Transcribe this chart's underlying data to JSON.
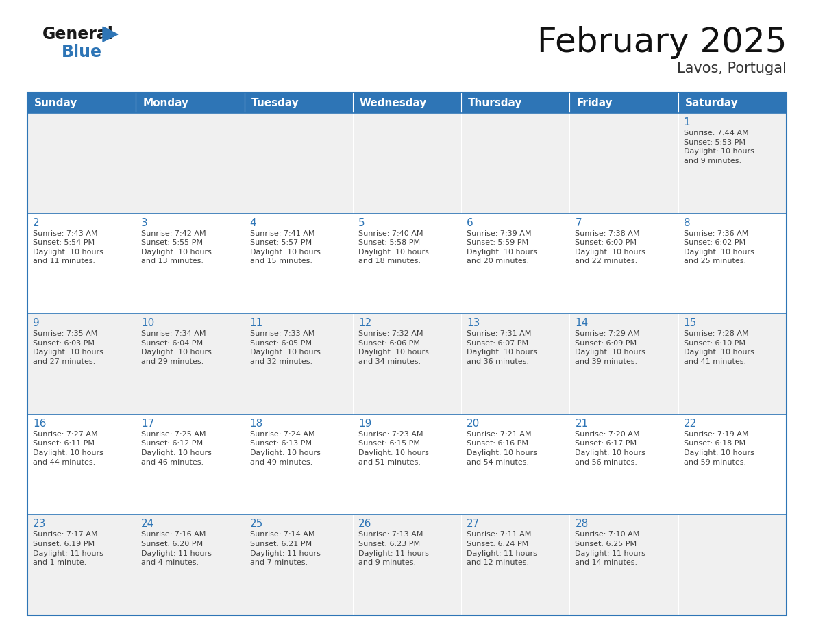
{
  "title": "February 2025",
  "subtitle": "Lavos, Portugal",
  "days_of_week": [
    "Sunday",
    "Monday",
    "Tuesday",
    "Wednesday",
    "Thursday",
    "Friday",
    "Saturday"
  ],
  "header_bg": "#2E75B6",
  "header_text": "#FFFFFF",
  "cell_bg_odd": "#F0F0F0",
  "cell_bg_even": "#FFFFFF",
  "border_color": "#2E75B6",
  "day_number_color": "#2E75B6",
  "text_color": "#404040",
  "calendar_data": [
    [
      null,
      null,
      null,
      null,
      null,
      null,
      {
        "day": 1,
        "sunrise": "7:44 AM",
        "sunset": "5:53 PM",
        "daylight": "10 hours\nand 9 minutes."
      }
    ],
    [
      {
        "day": 2,
        "sunrise": "7:43 AM",
        "sunset": "5:54 PM",
        "daylight": "10 hours\nand 11 minutes."
      },
      {
        "day": 3,
        "sunrise": "7:42 AM",
        "sunset": "5:55 PM",
        "daylight": "10 hours\nand 13 minutes."
      },
      {
        "day": 4,
        "sunrise": "7:41 AM",
        "sunset": "5:57 PM",
        "daylight": "10 hours\nand 15 minutes."
      },
      {
        "day": 5,
        "sunrise": "7:40 AM",
        "sunset": "5:58 PM",
        "daylight": "10 hours\nand 18 minutes."
      },
      {
        "day": 6,
        "sunrise": "7:39 AM",
        "sunset": "5:59 PM",
        "daylight": "10 hours\nand 20 minutes."
      },
      {
        "day": 7,
        "sunrise": "7:38 AM",
        "sunset": "6:00 PM",
        "daylight": "10 hours\nand 22 minutes."
      },
      {
        "day": 8,
        "sunrise": "7:36 AM",
        "sunset": "6:02 PM",
        "daylight": "10 hours\nand 25 minutes."
      }
    ],
    [
      {
        "day": 9,
        "sunrise": "7:35 AM",
        "sunset": "6:03 PM",
        "daylight": "10 hours\nand 27 minutes."
      },
      {
        "day": 10,
        "sunrise": "7:34 AM",
        "sunset": "6:04 PM",
        "daylight": "10 hours\nand 29 minutes."
      },
      {
        "day": 11,
        "sunrise": "7:33 AM",
        "sunset": "6:05 PM",
        "daylight": "10 hours\nand 32 minutes."
      },
      {
        "day": 12,
        "sunrise": "7:32 AM",
        "sunset": "6:06 PM",
        "daylight": "10 hours\nand 34 minutes."
      },
      {
        "day": 13,
        "sunrise": "7:31 AM",
        "sunset": "6:07 PM",
        "daylight": "10 hours\nand 36 minutes."
      },
      {
        "day": 14,
        "sunrise": "7:29 AM",
        "sunset": "6:09 PM",
        "daylight": "10 hours\nand 39 minutes."
      },
      {
        "day": 15,
        "sunrise": "7:28 AM",
        "sunset": "6:10 PM",
        "daylight": "10 hours\nand 41 minutes."
      }
    ],
    [
      {
        "day": 16,
        "sunrise": "7:27 AM",
        "sunset": "6:11 PM",
        "daylight": "10 hours\nand 44 minutes."
      },
      {
        "day": 17,
        "sunrise": "7:25 AM",
        "sunset": "6:12 PM",
        "daylight": "10 hours\nand 46 minutes."
      },
      {
        "day": 18,
        "sunrise": "7:24 AM",
        "sunset": "6:13 PM",
        "daylight": "10 hours\nand 49 minutes."
      },
      {
        "day": 19,
        "sunrise": "7:23 AM",
        "sunset": "6:15 PM",
        "daylight": "10 hours\nand 51 minutes."
      },
      {
        "day": 20,
        "sunrise": "7:21 AM",
        "sunset": "6:16 PM",
        "daylight": "10 hours\nand 54 minutes."
      },
      {
        "day": 21,
        "sunrise": "7:20 AM",
        "sunset": "6:17 PM",
        "daylight": "10 hours\nand 56 minutes."
      },
      {
        "day": 22,
        "sunrise": "7:19 AM",
        "sunset": "6:18 PM",
        "daylight": "10 hours\nand 59 minutes."
      }
    ],
    [
      {
        "day": 23,
        "sunrise": "7:17 AM",
        "sunset": "6:19 PM",
        "daylight": "11 hours\nand 1 minute."
      },
      {
        "day": 24,
        "sunrise": "7:16 AM",
        "sunset": "6:20 PM",
        "daylight": "11 hours\nand 4 minutes."
      },
      {
        "day": 25,
        "sunrise": "7:14 AM",
        "sunset": "6:21 PM",
        "daylight": "11 hours\nand 7 minutes."
      },
      {
        "day": 26,
        "sunrise": "7:13 AM",
        "sunset": "6:23 PM",
        "daylight": "11 hours\nand 9 minutes."
      },
      {
        "day": 27,
        "sunrise": "7:11 AM",
        "sunset": "6:24 PM",
        "daylight": "11 hours\nand 12 minutes."
      },
      {
        "day": 28,
        "sunrise": "7:10 AM",
        "sunset": "6:25 PM",
        "daylight": "11 hours\nand 14 minutes."
      },
      null
    ]
  ]
}
